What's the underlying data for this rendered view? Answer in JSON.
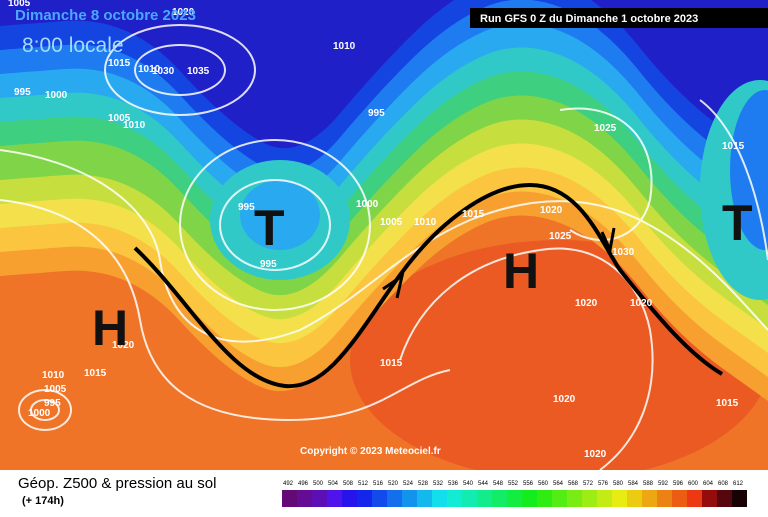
{
  "header": {
    "date": "Dimanche 8 octobre 2023",
    "time": "8:00 locale",
    "run": "Run GFS 0 Z du Dimanche 1 octobre 2023"
  },
  "map": {
    "copyright": "Copyright © 2023 Meteociel.fr",
    "systems": [
      "H",
      "T",
      "H",
      "T"
    ],
    "isobar_labels": [
      "1005",
      "1020",
      "1010",
      "1015",
      "1010",
      "1030",
      "1035",
      "995",
      "1000",
      "1005",
      "1010",
      "995",
      "1025",
      "1015",
      "995",
      "1000",
      "1005",
      "1010",
      "1015",
      "1020",
      "1025",
      "1030",
      "995",
      "1020",
      "1020",
      "1020",
      "1015",
      "1010",
      "1005",
      "1015",
      "995",
      "1000",
      "1020",
      "1015",
      "1020"
    ]
  },
  "footer": {
    "title": "Géop. Z500 & pression au sol",
    "lead": "(+ 174h)",
    "scale": [
      492,
      496,
      500,
      504,
      508,
      512,
      516,
      520,
      524,
      528,
      532,
      536,
      540,
      544,
      548,
      552,
      556,
      560,
      564,
      568,
      572,
      576,
      580,
      584,
      588,
      592,
      596,
      600,
      604,
      608,
      612
    ]
  }
}
